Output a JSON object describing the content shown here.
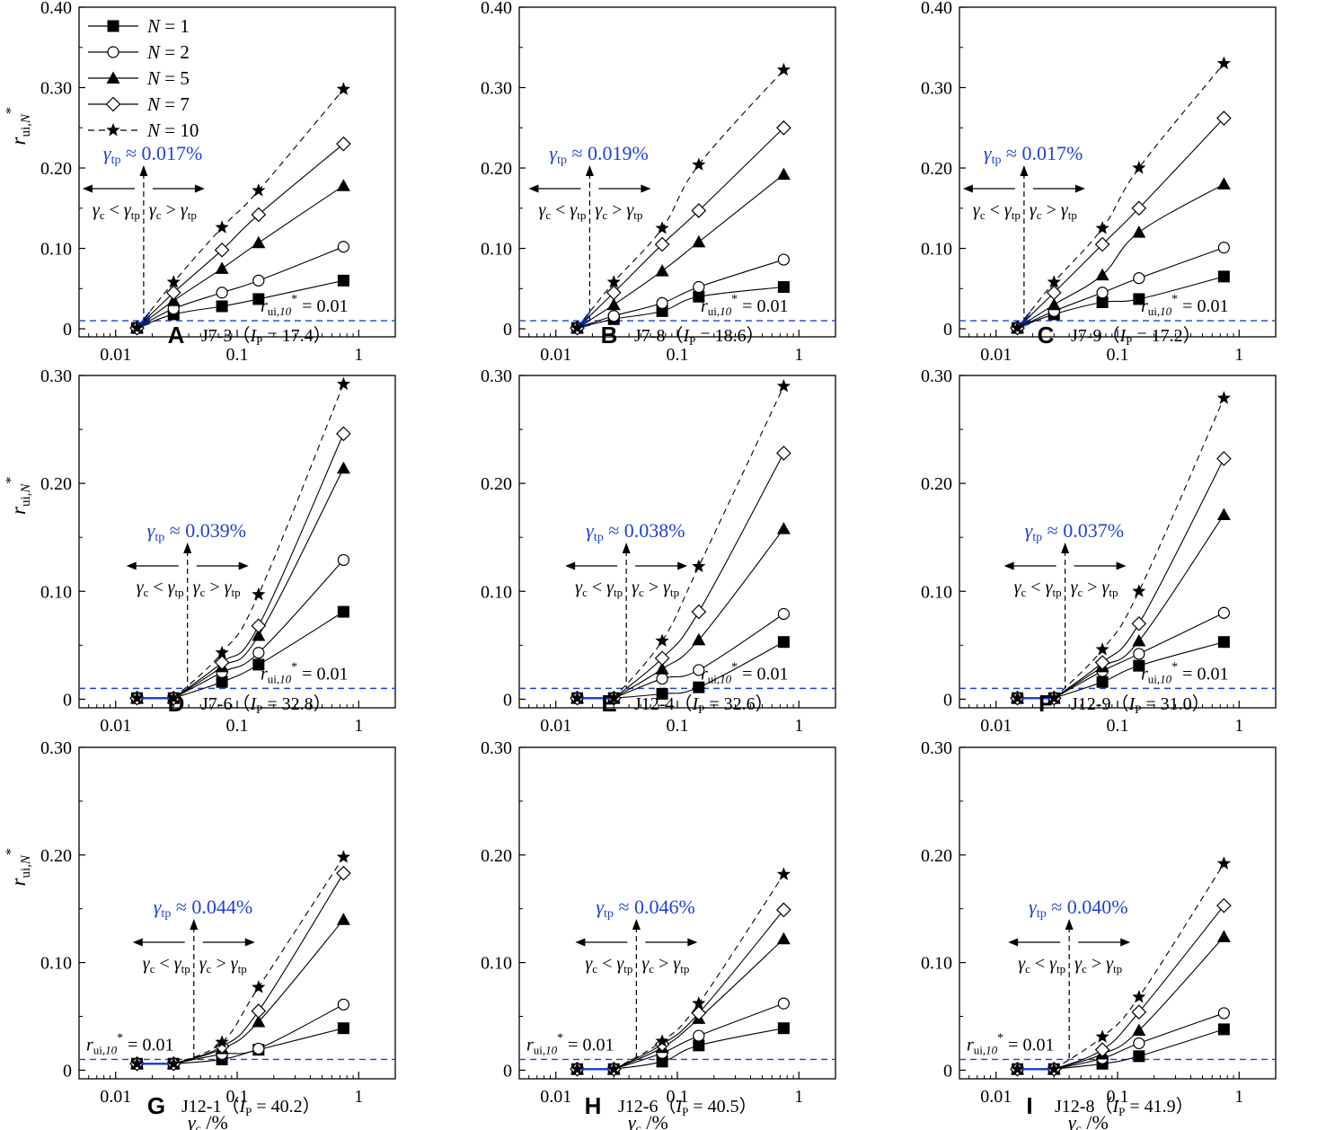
{
  "figure": {
    "x_axis_title": "γc /%",
    "y_axis_title": "rui,N*",
    "threshold_label": "rui,10* = 0.01",
    "tp_prefix": "γtp ≈ ",
    "left_region_label": "γc < γtp",
    "right_region_label": "γc > γtp",
    "series_colors": {
      "data": "#000000",
      "threshold": "#1f3fdc",
      "tp_text": "#1f3fdc",
      "fit_gray": "#888888"
    },
    "legend": [
      {
        "label": "N = 1",
        "marker": "filled-square",
        "line": "solid"
      },
      {
        "label": "N = 2",
        "marker": "open-circle",
        "line": "solid"
      },
      {
        "label": "N = 5",
        "marker": "filled-triangle",
        "line": "solid"
      },
      {
        "label": "N = 7",
        "marker": "open-diamond",
        "line": "solid"
      },
      {
        "label": "N = 10",
        "marker": "filled-star",
        "line": "dashed"
      }
    ]
  },
  "chart_data": [
    {
      "type": "line",
      "panel": "A",
      "title": "J7-3（IP = 17.4）",
      "specimen": "J7-3",
      "ip": "17.4",
      "xscale": "log",
      "xlim": [
        0.005,
        2
      ],
      "ylim": [
        -0.01,
        0.4
      ],
      "xticks": [
        "0.01",
        "0.1",
        "1"
      ],
      "yticks": [
        "0",
        "0.10",
        "0.20",
        "0.30",
        "0.40"
      ],
      "ytick_values": [
        0,
        0.1,
        0.2,
        0.3,
        0.4
      ],
      "x": [
        0.015,
        0.03,
        0.075,
        0.15,
        0.75
      ],
      "series": [
        {
          "name": "N = 1",
          "values": [
            0.001,
            0.018,
            0.028,
            0.037,
            0.06
          ]
        },
        {
          "name": "N = 2",
          "values": [
            0.001,
            0.025,
            0.045,
            0.06,
            0.102
          ]
        },
        {
          "name": "N = 5",
          "values": [
            0.001,
            0.035,
            0.075,
            0.107,
            0.178
          ]
        },
        {
          "name": "N = 7",
          "values": [
            0.001,
            0.045,
            0.098,
            0.142,
            0.23
          ]
        },
        {
          "name": "N = 10",
          "values": [
            0.001,
            0.058,
            0.126,
            0.172,
            0.298
          ]
        }
      ],
      "threshold": 0.01,
      "gamma_tp": "0.017%",
      "gamma_tp_value": 0.017,
      "show_legend": true,
      "show_ylabel": true,
      "show_xlabel": false,
      "flat_start": false,
      "threshold_label_side": "right"
    },
    {
      "type": "line",
      "panel": "B",
      "title": "J7-8（IP = 18.6）",
      "specimen": "J7-8",
      "ip": "18.6",
      "xscale": "log",
      "xlim": [
        0.005,
        2
      ],
      "ylim": [
        -0.01,
        0.4
      ],
      "xticks": [
        "0.01",
        "0.1",
        "1"
      ],
      "yticks": [
        "0",
        "0.10",
        "0.20",
        "0.30",
        "0.40"
      ],
      "ytick_values": [
        0,
        0.1,
        0.2,
        0.3,
        0.4
      ],
      "x": [
        0.015,
        0.03,
        0.075,
        0.15,
        0.75
      ],
      "series": [
        {
          "name": "N = 1",
          "values": [
            0.001,
            0.012,
            0.022,
            0.04,
            0.052
          ]
        },
        {
          "name": "N = 2",
          "values": [
            0.001,
            0.016,
            0.032,
            0.052,
            0.086
          ]
        },
        {
          "name": "N = 5",
          "values": [
            0.001,
            0.03,
            0.072,
            0.108,
            0.192
          ]
        },
        {
          "name": "N = 7",
          "values": [
            0.001,
            0.045,
            0.105,
            0.147,
            0.25
          ]
        },
        {
          "name": "N = 10",
          "values": [
            0.001,
            0.058,
            0.125,
            0.204,
            0.322
          ]
        }
      ],
      "threshold": 0.01,
      "gamma_tp": "0.019%",
      "gamma_tp_value": 0.019,
      "show_legend": false,
      "show_ylabel": false,
      "show_xlabel": false,
      "flat_start": false,
      "threshold_label_side": "right"
    },
    {
      "type": "line",
      "panel": "C",
      "title": "J7-9（IP = 17.2）",
      "specimen": "J7-9",
      "ip": "17.2",
      "xscale": "log",
      "xlim": [
        0.005,
        2
      ],
      "ylim": [
        -0.01,
        0.4
      ],
      "xticks": [
        "0.01",
        "0.1",
        "1"
      ],
      "yticks": [
        "0",
        "0.10",
        "0.20",
        "0.30",
        "0.40"
      ],
      "ytick_values": [
        0,
        0.1,
        0.2,
        0.3,
        0.4
      ],
      "x": [
        0.015,
        0.03,
        0.075,
        0.15,
        0.75
      ],
      "series": [
        {
          "name": "N = 1",
          "values": [
            0.001,
            0.018,
            0.033,
            0.037,
            0.065
          ]
        },
        {
          "name": "N = 2",
          "values": [
            0.001,
            0.022,
            0.045,
            0.063,
            0.101
          ]
        },
        {
          "name": "N = 5",
          "values": [
            0.001,
            0.03,
            0.067,
            0.12,
            0.18
          ]
        },
        {
          "name": "N = 7",
          "values": [
            0.001,
            0.045,
            0.105,
            0.15,
            0.262
          ]
        },
        {
          "name": "N = 10",
          "values": [
            0.001,
            0.058,
            0.125,
            0.2,
            0.33
          ]
        }
      ],
      "threshold": 0.01,
      "gamma_tp": "0.017%",
      "gamma_tp_value": 0.017,
      "show_legend": false,
      "show_ylabel": false,
      "show_xlabel": false,
      "flat_start": false,
      "threshold_label_side": "right"
    },
    {
      "type": "line",
      "panel": "D",
      "title": "J7-6（IP = 32.8）",
      "specimen": "J7-6",
      "ip": "32.8",
      "xscale": "log",
      "xlim": [
        0.005,
        2
      ],
      "ylim": [
        -0.008,
        0.3
      ],
      "xticks": [
        "0.01",
        "0.1",
        "1"
      ],
      "yticks": [
        "0",
        "0.10",
        "0.20",
        "0.30"
      ],
      "ytick_values": [
        0,
        0.1,
        0.2,
        0.3
      ],
      "x": [
        0.015,
        0.03,
        0.075,
        0.15,
        0.75
      ],
      "series": [
        {
          "name": "N = 1",
          "values": [
            0.001,
            0.001,
            0.016,
            0.032,
            0.081
          ]
        },
        {
          "name": "N = 2",
          "values": [
            0.001,
            0.001,
            0.025,
            0.043,
            0.129
          ]
        },
        {
          "name": "N = 5",
          "values": [
            0.001,
            0.001,
            0.03,
            0.059,
            0.214
          ]
        },
        {
          "name": "N = 7",
          "values": [
            0.001,
            0.001,
            0.034,
            0.068,
            0.246
          ]
        },
        {
          "name": "N = 10",
          "values": [
            0.001,
            0.001,
            0.043,
            0.097,
            0.292
          ]
        }
      ],
      "threshold": 0.01,
      "gamma_tp": "0.039%",
      "gamma_tp_value": 0.039,
      "show_legend": false,
      "show_ylabel": true,
      "show_xlabel": false,
      "flat_start": true,
      "threshold_label_side": "right"
    },
    {
      "type": "line",
      "panel": "E",
      "title": "J12-4（IP = 32.6）",
      "specimen": "J12-4",
      "ip": "32.6",
      "xscale": "log",
      "xlim": [
        0.005,
        2
      ],
      "ylim": [
        -0.008,
        0.3
      ],
      "xticks": [
        "0.01",
        "0.1",
        "1"
      ],
      "yticks": [
        "0",
        "0.10",
        "0.20",
        "0.30"
      ],
      "ytick_values": [
        0,
        0.1,
        0.2,
        0.3
      ],
      "x": [
        0.015,
        0.03,
        0.075,
        0.15,
        0.75
      ],
      "series": [
        {
          "name": "N = 1",
          "values": [
            0.001,
            0.001,
            0.005,
            0.011,
            0.053
          ]
        },
        {
          "name": "N = 2",
          "values": [
            0.001,
            0.001,
            0.019,
            0.027,
            0.079
          ]
        },
        {
          "name": "N = 5",
          "values": [
            0.001,
            0.001,
            0.028,
            0.055,
            0.158
          ]
        },
        {
          "name": "N = 7",
          "values": [
            0.001,
            0.001,
            0.038,
            0.081,
            0.228
          ]
        },
        {
          "name": "N = 10",
          "values": [
            0.001,
            0.001,
            0.054,
            0.123,
            0.29
          ]
        }
      ],
      "threshold": 0.01,
      "gamma_tp": "0.038%",
      "gamma_tp_value": 0.038,
      "show_legend": false,
      "show_ylabel": false,
      "show_xlabel": false,
      "flat_start": true,
      "threshold_label_side": "right"
    },
    {
      "type": "line",
      "panel": "F",
      "title": "J12-9（IP = 31.0）",
      "specimen": "J12-9",
      "ip": "31.0",
      "xscale": "log",
      "xlim": [
        0.005,
        2
      ],
      "ylim": [
        -0.008,
        0.3
      ],
      "xticks": [
        "0.01",
        "0.1",
        "1"
      ],
      "yticks": [
        "0",
        "0.10",
        "0.20",
        "0.30"
      ],
      "ytick_values": [
        0,
        0.1,
        0.2,
        0.3
      ],
      "x": [
        0.015,
        0.03,
        0.075,
        0.15,
        0.75
      ],
      "series": [
        {
          "name": "N = 1",
          "values": [
            0.001,
            0.001,
            0.016,
            0.031,
            0.053
          ]
        },
        {
          "name": "N = 2",
          "values": [
            0.001,
            0.001,
            0.026,
            0.042,
            0.08
          ]
        },
        {
          "name": "N = 5",
          "values": [
            0.001,
            0.001,
            0.03,
            0.054,
            0.171
          ]
        },
        {
          "name": "N = 7",
          "values": [
            0.001,
            0.001,
            0.034,
            0.07,
            0.223
          ]
        },
        {
          "name": "N = 10",
          "values": [
            0.001,
            0.001,
            0.046,
            0.1,
            0.279
          ]
        }
      ],
      "threshold": 0.01,
      "gamma_tp": "0.037%",
      "gamma_tp_value": 0.037,
      "show_legend": false,
      "show_ylabel": false,
      "show_xlabel": false,
      "flat_start": true,
      "threshold_label_side": "right"
    },
    {
      "type": "line",
      "panel": "G",
      "title": "J12-1（IP = 40.2）",
      "specimen": "J12-1",
      "ip": "40.2",
      "xscale": "log",
      "xlim": [
        0.005,
        2
      ],
      "ylim": [
        -0.008,
        0.3
      ],
      "xticks": [
        "0.01",
        "0.1",
        "1"
      ],
      "yticks": [
        "0",
        "0.10",
        "0.20",
        "0.30"
      ],
      "ytick_values": [
        0,
        0.1,
        0.2,
        0.3
      ],
      "x": [
        0.015,
        0.03,
        0.075,
        0.15,
        0.75
      ],
      "series": [
        {
          "name": "N = 1",
          "values": [
            0.006,
            0.006,
            0.01,
            0.019,
            0.039
          ]
        },
        {
          "name": "N = 2",
          "values": [
            0.006,
            0.006,
            0.015,
            0.02,
            0.061
          ]
        },
        {
          "name": "N = 5",
          "values": [
            0.006,
            0.006,
            0.02,
            0.045,
            0.14
          ]
        },
        {
          "name": "N = 7",
          "values": [
            0.006,
            0.006,
            0.022,
            0.055,
            0.183
          ]
        },
        {
          "name": "N = 10",
          "values": [
            0.006,
            0.006,
            0.026,
            0.077,
            0.198
          ]
        }
      ],
      "threshold": 0.01,
      "gamma_tp": "0.044%",
      "gamma_tp_value": 0.044,
      "show_legend": false,
      "show_ylabel": true,
      "show_xlabel": true,
      "flat_start": true,
      "threshold_label_side": "left"
    },
    {
      "type": "line",
      "panel": "H",
      "title": "J12-6（IP = 40.5）",
      "specimen": "J12-6",
      "ip": "40.5",
      "xscale": "log",
      "xlim": [
        0.005,
        2
      ],
      "ylim": [
        -0.008,
        0.3
      ],
      "xticks": [
        "0.01",
        "0.1",
        "1"
      ],
      "yticks": [
        "0",
        "0.10",
        "0.20",
        "0.30"
      ],
      "ytick_values": [
        0,
        0.1,
        0.2,
        0.3
      ],
      "x": [
        0.015,
        0.03,
        0.075,
        0.15,
        0.75
      ],
      "series": [
        {
          "name": "N = 1",
          "values": [
            0.001,
            0.001,
            0.008,
            0.023,
            0.039
          ]
        },
        {
          "name": "N = 2",
          "values": [
            0.001,
            0.001,
            0.016,
            0.032,
            0.062
          ]
        },
        {
          "name": "N = 5",
          "values": [
            0.001,
            0.001,
            0.021,
            0.048,
            0.122
          ]
        },
        {
          "name": "N = 7",
          "values": [
            0.001,
            0.001,
            0.024,
            0.053,
            0.149
          ]
        },
        {
          "name": "N = 10",
          "values": [
            0.001,
            0.001,
            0.027,
            0.062,
            0.182
          ]
        }
      ],
      "threshold": 0.01,
      "gamma_tp": "0.046%",
      "gamma_tp_value": 0.046,
      "show_legend": false,
      "show_ylabel": false,
      "show_xlabel": true,
      "flat_start": true,
      "threshold_label_side": "left"
    },
    {
      "type": "line",
      "panel": "I",
      "title": "J12-8（IP = 41.9）",
      "specimen": "J12-8",
      "ip": "41.9",
      "xscale": "log",
      "xlim": [
        0.005,
        2
      ],
      "ylim": [
        -0.008,
        0.3
      ],
      "xticks": [
        "0.01",
        "0.1",
        "1"
      ],
      "yticks": [
        "0",
        "0.10",
        "0.20",
        "0.30"
      ],
      "ytick_values": [
        0,
        0.1,
        0.2,
        0.3
      ],
      "x": [
        0.015,
        0.03,
        0.075,
        0.15,
        0.75
      ],
      "series": [
        {
          "name": "N = 1",
          "values": [
            0.001,
            0.001,
            0.006,
            0.013,
            0.038
          ]
        },
        {
          "name": "N = 2",
          "values": [
            0.001,
            0.001,
            0.011,
            0.025,
            0.053
          ]
        },
        {
          "name": "N = 5",
          "values": [
            0.001,
            0.001,
            0.015,
            0.037,
            0.124
          ]
        },
        {
          "name": "N = 7",
          "values": [
            0.001,
            0.001,
            0.019,
            0.054,
            0.153
          ]
        },
        {
          "name": "N = 10",
          "values": [
            0.001,
            0.001,
            0.031,
            0.068,
            0.192
          ]
        }
      ],
      "threshold": 0.01,
      "gamma_tp": "0.040%",
      "gamma_tp_value": 0.04,
      "show_legend": false,
      "show_ylabel": false,
      "show_xlabel": true,
      "flat_start": true,
      "threshold_label_side": "left"
    }
  ]
}
